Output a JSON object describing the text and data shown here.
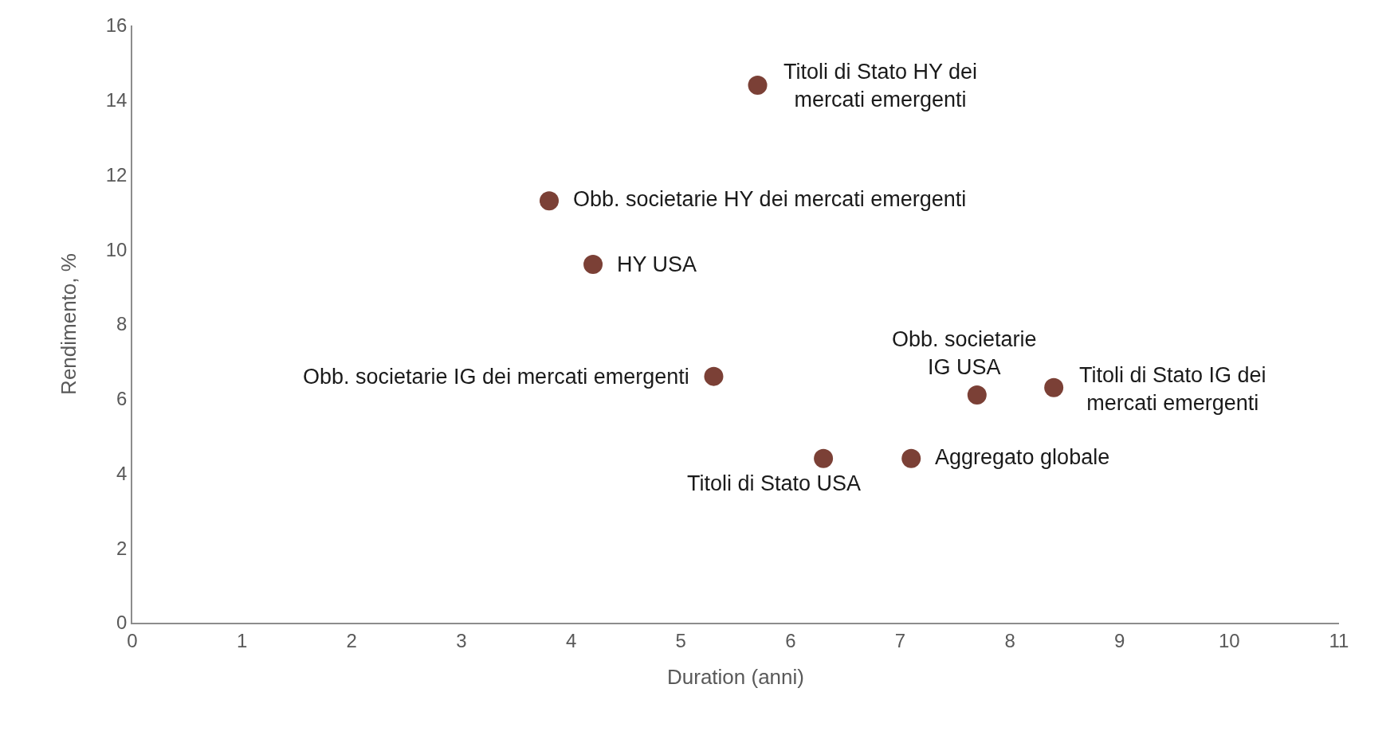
{
  "chart_data": {
    "type": "scatter",
    "xlabel": "Duration (anni)",
    "ylabel": "Rendimento, %",
    "x": [
      5.7,
      3.8,
      4.2,
      5.3,
      7.7,
      8.4,
      6.3,
      7.1
    ],
    "series": [
      {
        "color": "#7b4036",
        "values": [
          14.4,
          11.3,
          9.6,
          6.6,
          6.1,
          6.3,
          4.4,
          4.4
        ]
      }
    ],
    "xlim": [
      0,
      11
    ],
    "xticks": [
      0,
      1,
      2,
      3,
      4,
      5,
      6,
      7,
      8,
      9,
      10,
      11
    ],
    "ylim": [
      0,
      16
    ],
    "yticks": [
      0,
      2,
      4,
      6,
      8,
      10,
      12,
      14,
      16
    ],
    "marker": "circle",
    "annotations": [
      {
        "text": "Titoli di Stato HY dei\nmercati emergenti",
        "x": 5.7,
        "y": 14.4
      },
      {
        "text": "Obb. societarie HY dei mercati emergenti",
        "x": 3.8,
        "y": 11.3
      },
      {
        "text": "HY USA",
        "x": 4.2,
        "y": 9.6
      },
      {
        "text": "Obb. societarie IG dei mercati emergenti",
        "x": 5.3,
        "y": 6.6
      },
      {
        "text": "Obb. societarie\nIG USA",
        "x": 7.7,
        "y": 6.1
      },
      {
        "text": "Titoli di Stato IG dei\nmercati emergenti",
        "x": 8.4,
        "y": 6.3
      },
      {
        "text": "Titoli di Stato USA",
        "x": 6.3,
        "y": 4.4
      },
      {
        "text": "Aggregato globale",
        "x": 7.1,
        "y": 4.4
      }
    ]
  }
}
